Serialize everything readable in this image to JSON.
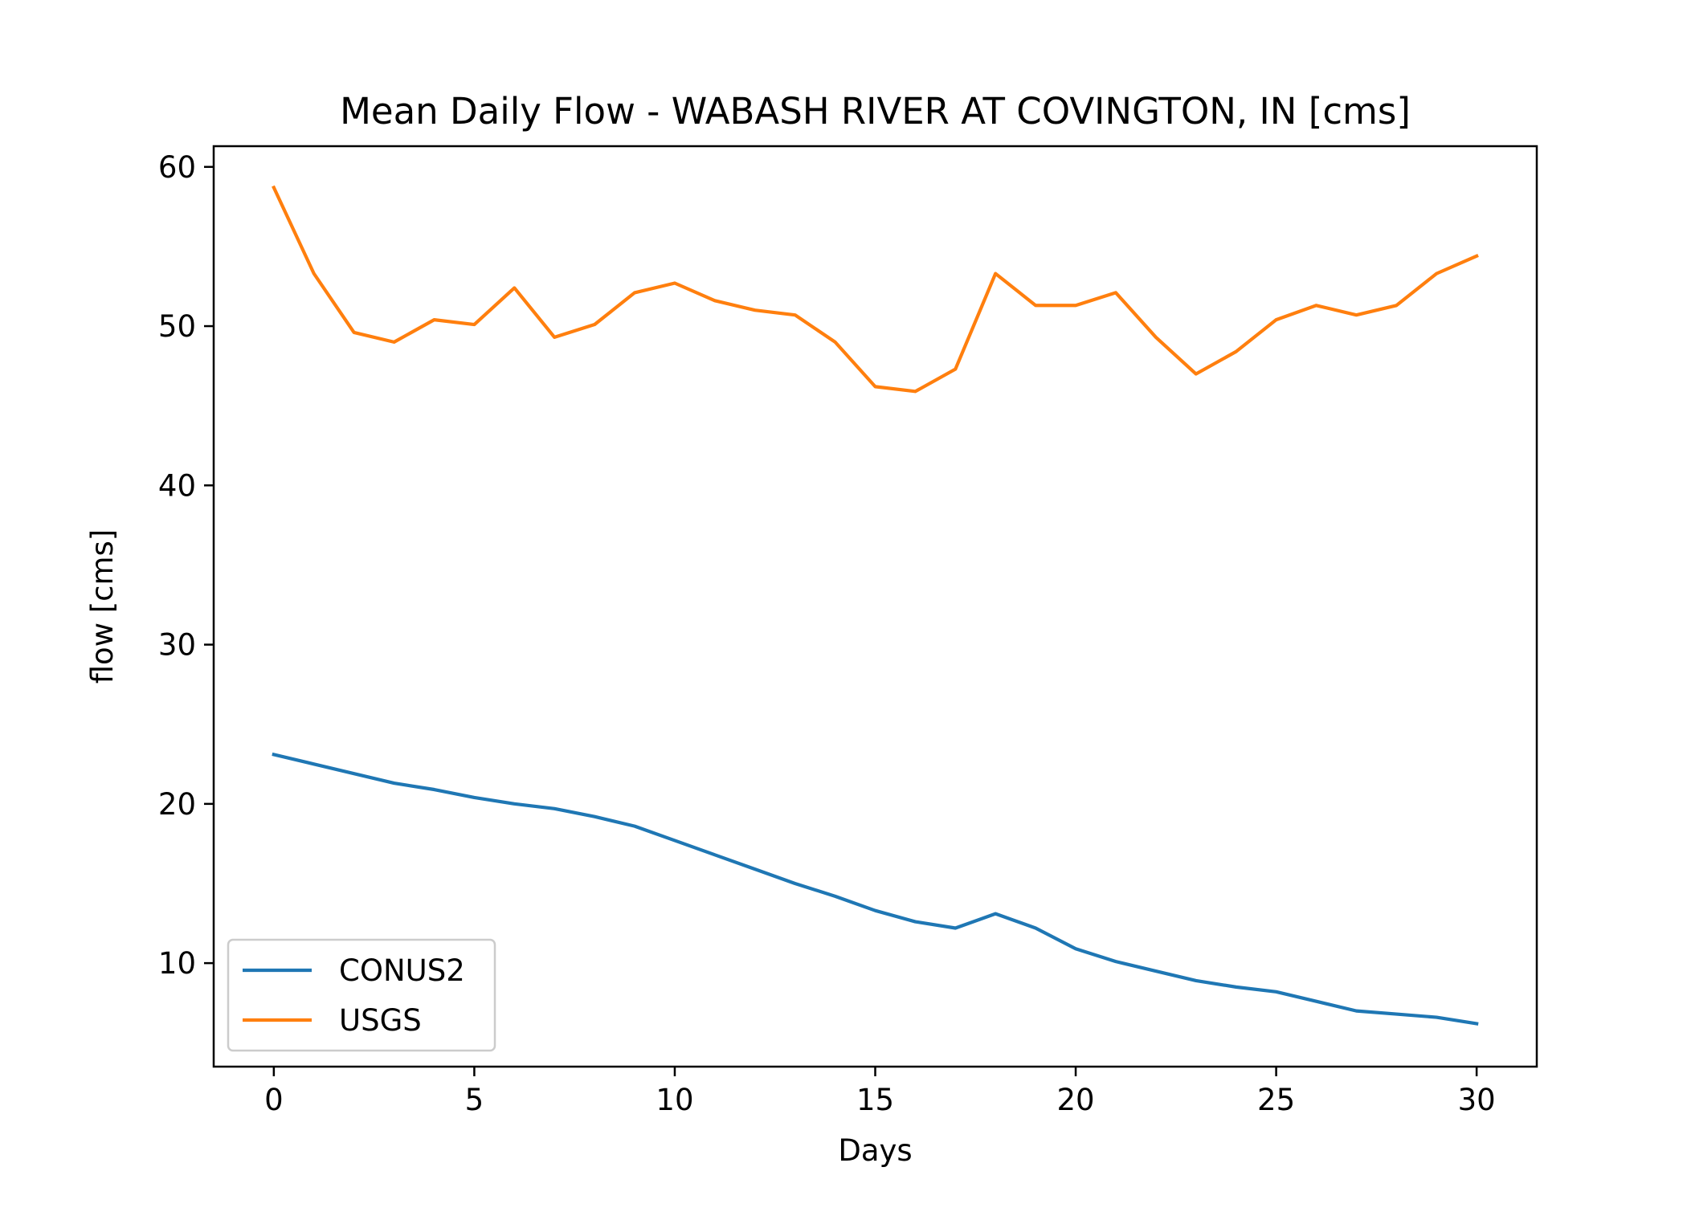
{
  "chart_data": {
    "type": "line",
    "title": "Mean Daily Flow - WABASH RIVER AT COVINGTON, IN [cms]",
    "xlabel": "Days",
    "ylabel": "flow [cms]",
    "xlim": [
      -1.5,
      31.5
    ],
    "ylim": [
      3.5,
      61.3
    ],
    "xticks": [
      0,
      5,
      10,
      15,
      20,
      25,
      30
    ],
    "yticks": [
      10,
      20,
      30,
      40,
      50,
      60
    ],
    "grid": false,
    "legend_position": "lower-left",
    "x": [
      0,
      1,
      2,
      3,
      4,
      5,
      6,
      7,
      8,
      9,
      10,
      11,
      12,
      13,
      14,
      15,
      16,
      17,
      18,
      19,
      20,
      21,
      22,
      23,
      24,
      25,
      26,
      27,
      28,
      29,
      30
    ],
    "series": [
      {
        "name": "CONUS2",
        "color": "#1f77b4",
        "values": [
          23.1,
          22.5,
          21.9,
          21.3,
          20.9,
          20.4,
          20.0,
          19.7,
          19.2,
          18.6,
          17.7,
          16.8,
          15.9,
          15.0,
          14.2,
          13.3,
          12.6,
          12.2,
          13.1,
          12.2,
          10.9,
          10.1,
          9.5,
          8.9,
          8.5,
          8.2,
          7.6,
          7.0,
          6.8,
          6.6,
          6.2
        ]
      },
      {
        "name": "USGS",
        "color": "#ff7f0e",
        "values": [
          58.7,
          53.3,
          49.6,
          49.0,
          50.4,
          50.1,
          52.4,
          49.3,
          50.1,
          52.1,
          52.7,
          51.6,
          51.0,
          50.7,
          49.0,
          46.2,
          45.9,
          47.3,
          53.3,
          51.3,
          51.3,
          52.1,
          49.3,
          47.0,
          48.4,
          50.4,
          51.3,
          50.7,
          51.3,
          53.3,
          54.4
        ]
      }
    ]
  }
}
